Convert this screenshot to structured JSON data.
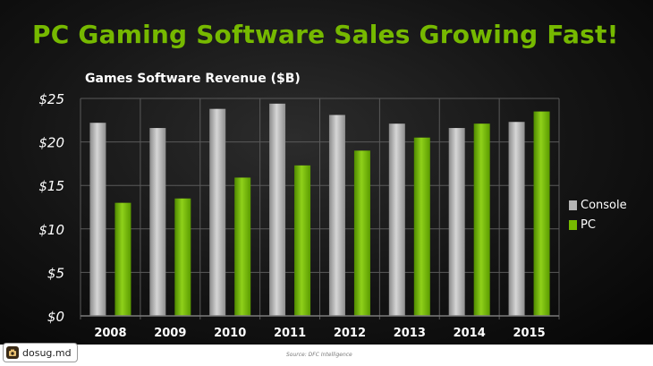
{
  "slide_title": "PC Gaming Software Sales Growing Fast!",
  "source_note": "Source: DFC Intelligence",
  "watermark": {
    "label": "dosug.md",
    "icon": "camera-icon"
  },
  "colors": {
    "title": "#76b900",
    "pc": "#76b900",
    "console": "#b4b4b4",
    "axis_text": "#ffffff",
    "grid": "#5a5a5a"
  },
  "chart_data": {
    "type": "bar",
    "title": "Games Software Revenue ($B)",
    "xlabel": "",
    "ylabel": "",
    "categories": [
      "2008",
      "2009",
      "2010",
      "2011",
      "2012",
      "2013",
      "2014",
      "2015"
    ],
    "series": [
      {
        "name": "Console",
        "values": [
          22.2,
          21.6,
          23.8,
          24.4,
          23.1,
          22.1,
          21.6,
          22.3
        ]
      },
      {
        "name": "PC",
        "values": [
          13.0,
          13.5,
          15.9,
          17.3,
          19.0,
          20.5,
          22.1,
          23.5
        ]
      }
    ],
    "ylim": [
      0,
      25
    ],
    "yticks": [
      0,
      5,
      10,
      15,
      20,
      25
    ],
    "ytick_labels": [
      "$0",
      "$5",
      "$10",
      "$15",
      "$20",
      "$25"
    ],
    "grid": true,
    "legend_position": "right"
  }
}
